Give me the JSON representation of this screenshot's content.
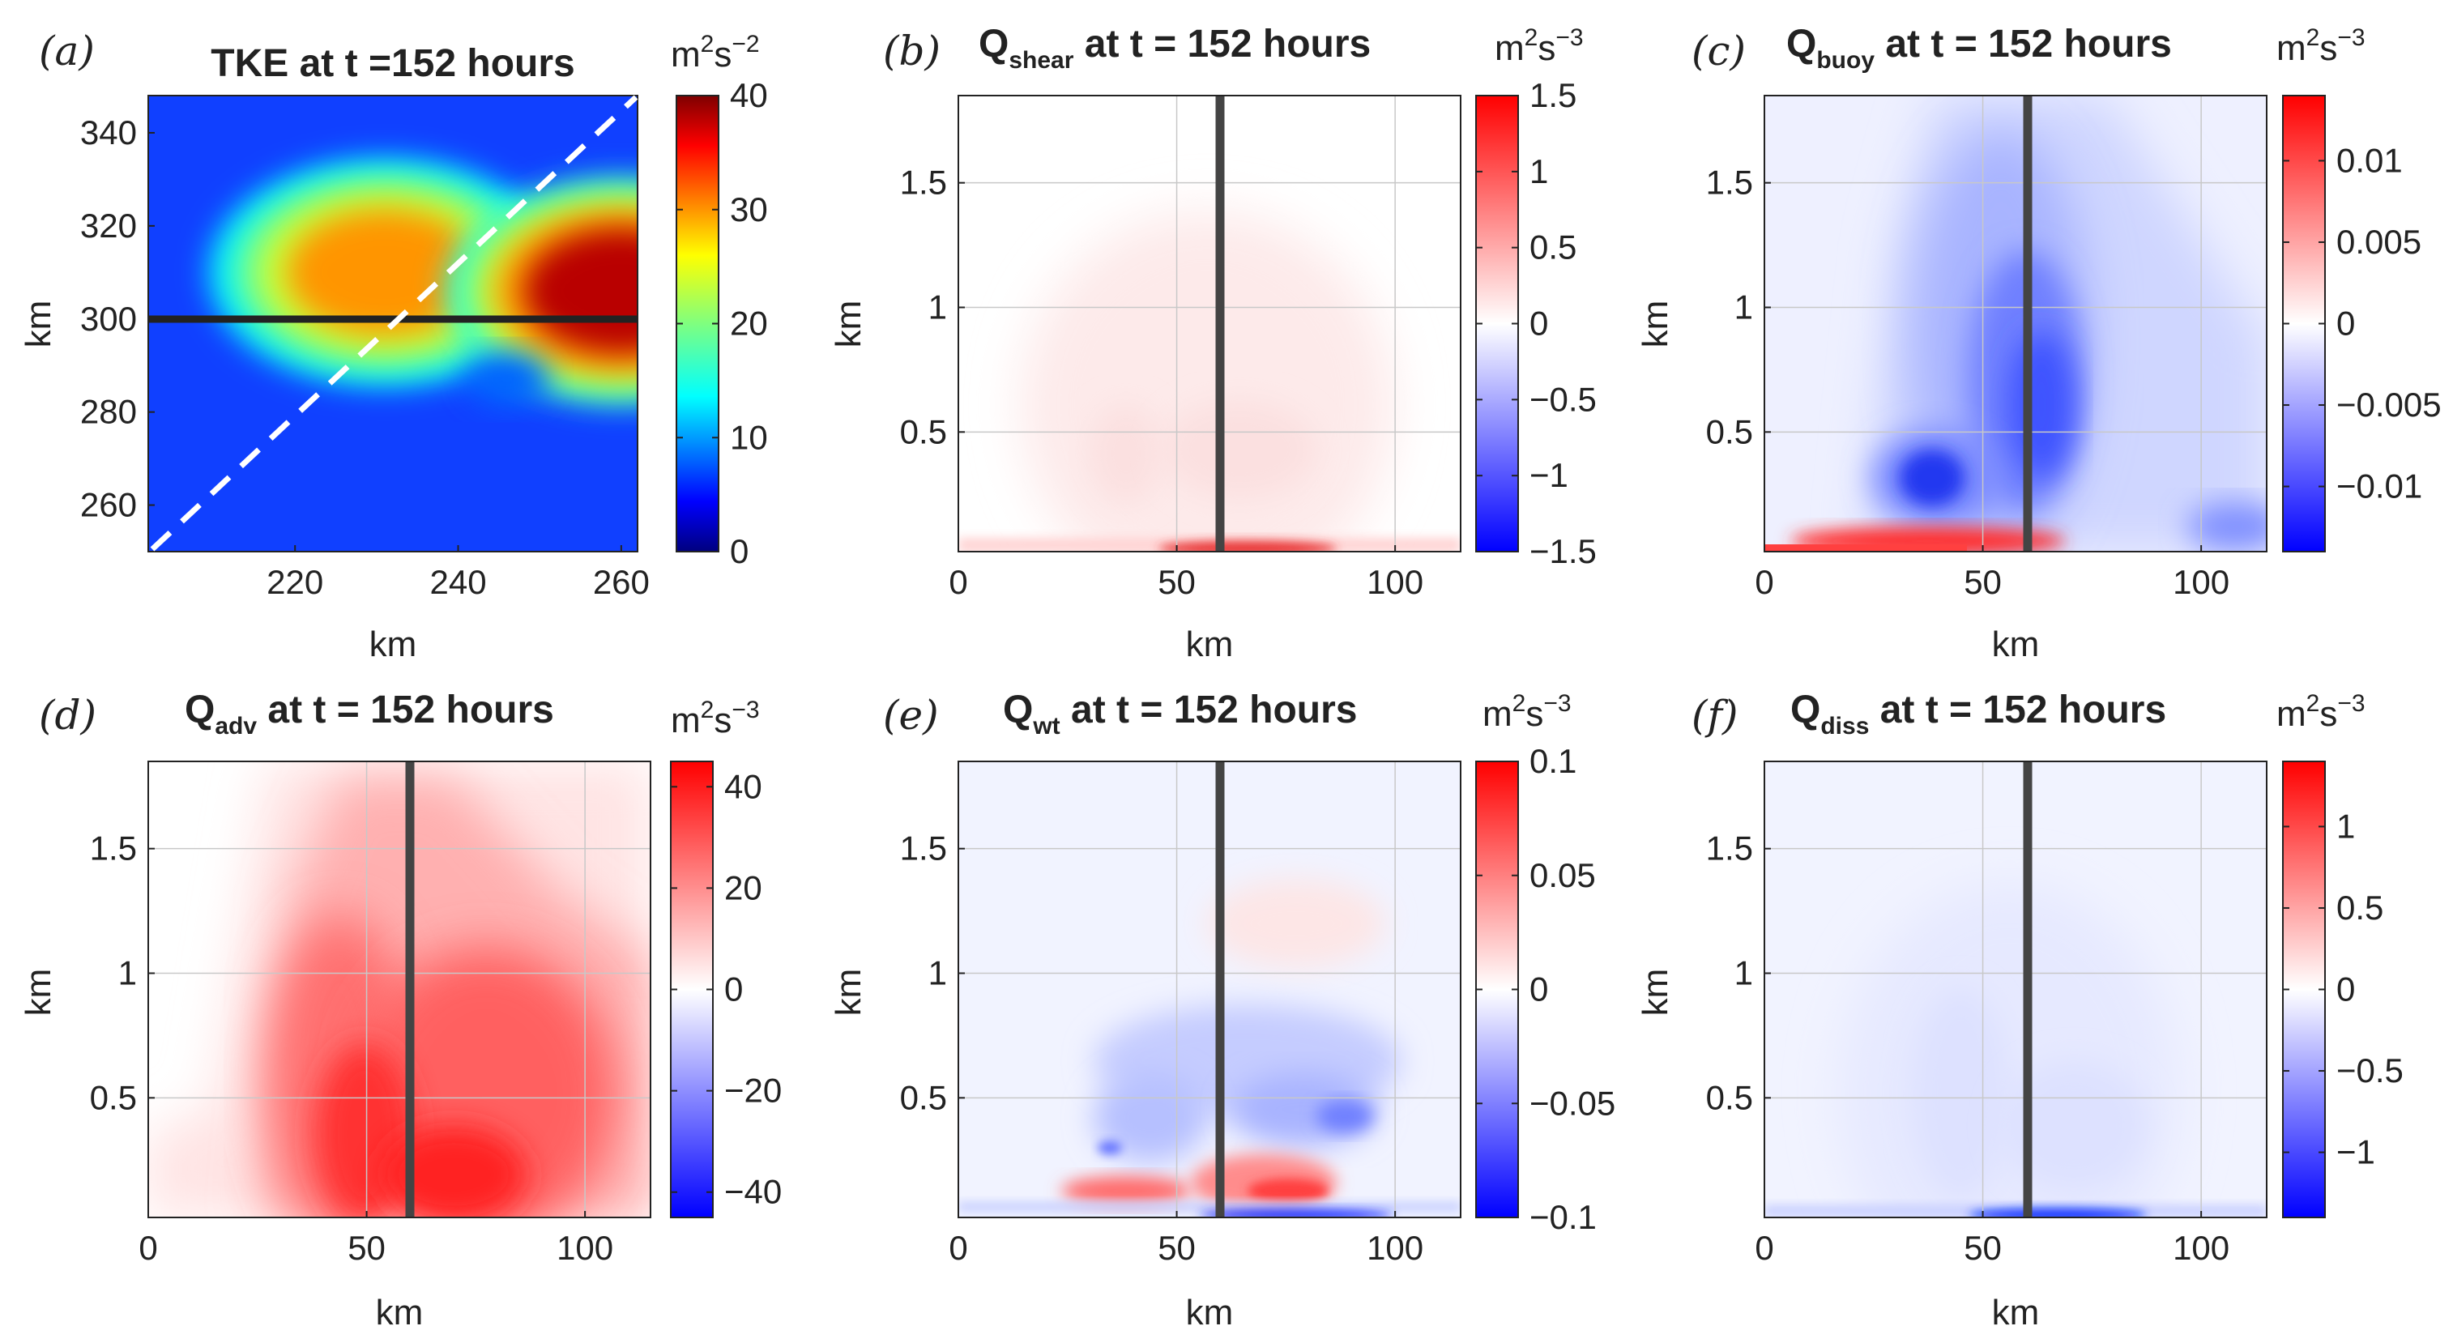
{
  "chart_data": [
    {
      "id": "a",
      "type": "heatmap",
      "panel_letter": "(a)",
      "title": "TKE at t =152 hours",
      "xlabel": "km",
      "ylabel": "km",
      "xlim": [
        202,
        262
      ],
      "ylim": [
        250,
        348
      ],
      "xticks": [
        "220",
        "240",
        "260"
      ],
      "yticks": [
        "260",
        "280",
        "300",
        "320",
        "340"
      ],
      "colorbar": {
        "unit": "m²s⁻²",
        "unit_main": "m",
        "unit_exp": "2",
        "unit_main2": "s",
        "unit_exp2": "−2",
        "min": 0,
        "max": 40,
        "ticks": [
          "0",
          "10",
          "20",
          "30",
          "40"
        ],
        "colormap": "jet"
      },
      "overlays": {
        "horizontal_line_y": 300,
        "dashed_diagonal": true
      },
      "blobs": [
        {
          "x": 231,
          "y": 310,
          "value": 30
        },
        {
          "x": 260,
          "y": 306,
          "value": 38
        },
        {
          "x": 246,
          "y": 287,
          "value": 8
        }
      ],
      "base_value": 4
    },
    {
      "id": "b",
      "type": "heatmap",
      "panel_letter": "(b)",
      "title_main": "Q",
      "title_sub": "shear",
      "title_rest": " at t = 152 hours",
      "xlabel": "km",
      "ylabel": "km",
      "xlim": [
        0,
        115
      ],
      "ylim": [
        0.02,
        1.85
      ],
      "xticks": [
        "0",
        "50",
        "100"
      ],
      "yticks": [
        "0.5",
        "1",
        "1.5"
      ],
      "colorbar": {
        "unit_main": "m",
        "unit_exp": "2",
        "unit_main2": "s",
        "unit_exp2": "−3",
        "min": -1.5,
        "max": 1.5,
        "ticks": [
          "1.5",
          "1",
          "0.5",
          "0",
          "−0.5",
          "−1",
          "−1.5"
        ],
        "colormap": "bwr"
      },
      "overlays": {
        "vertical_line_x": 60
      },
      "peak_value": 0.8
    },
    {
      "id": "c",
      "type": "heatmap",
      "panel_letter": "(c)",
      "title_main": "Q",
      "title_sub": "buoy",
      "title_rest": " at t = 152 hours",
      "xlabel": "km",
      "ylabel": "km",
      "xlim": [
        0,
        115
      ],
      "ylim": [
        0.02,
        1.85
      ],
      "xticks": [
        "0",
        "50",
        "100"
      ],
      "yticks": [
        "0.5",
        "1",
        "1.5"
      ],
      "colorbar": {
        "unit_main": "m",
        "unit_exp": "2",
        "unit_main2": "s",
        "unit_exp2": "−3",
        "min": -0.014,
        "max": 0.014,
        "ticks": [
          "0.01",
          "0.005",
          "0",
          "−0.005",
          "−0.01"
        ],
        "colormap": "bwr"
      },
      "overlays": {
        "vertical_line_x": 60
      }
    },
    {
      "id": "d",
      "type": "heatmap",
      "panel_letter": "(d)",
      "title_main": "Q",
      "title_sub": "adv",
      "title_rest": " at t = 152 hours",
      "xlabel": "km",
      "ylabel": "km",
      "xlim": [
        0,
        115
      ],
      "ylim": [
        0.02,
        1.85
      ],
      "xticks": [
        "0",
        "50",
        "100"
      ],
      "yticks": [
        "0.5",
        "1",
        "1.5"
      ],
      "colorbar": {
        "unit_main": "m",
        "unit_exp": "2",
        "unit_main2": "s",
        "unit_exp2": "−3",
        "min": -45,
        "max": 45,
        "ticks": [
          "40",
          "20",
          "0",
          "−20",
          "−40"
        ],
        "colormap": "bwr"
      },
      "overlays": {
        "vertical_line_x": 60
      }
    },
    {
      "id": "e",
      "type": "heatmap",
      "panel_letter": "(e)",
      "title_main": "Q",
      "title_sub": "wt",
      "title_rest": " at t = 152 hours",
      "xlabel": "km",
      "ylabel": "km",
      "xlim": [
        0,
        115
      ],
      "ylim": [
        0.02,
        1.85
      ],
      "xticks": [
        "0",
        "50",
        "100"
      ],
      "yticks": [
        "0.5",
        "1",
        "1.5"
      ],
      "colorbar": {
        "unit_main": "m",
        "unit_exp": "2",
        "unit_main2": "s",
        "unit_exp2": "−3",
        "min": -0.1,
        "max": 0.1,
        "ticks": [
          "0.1",
          "0.05",
          "0",
          "−0.05",
          "−0.1"
        ],
        "colormap": "bwr"
      },
      "overlays": {
        "vertical_line_x": 60
      }
    },
    {
      "id": "f",
      "type": "heatmap",
      "panel_letter": "(f)",
      "title_main": "Q",
      "title_sub": "diss",
      "title_rest": " at t = 152 hours",
      "xlabel": "km",
      "ylabel": "km",
      "xlim": [
        0,
        115
      ],
      "ylim": [
        0.02,
        1.85
      ],
      "xticks": [
        "0",
        "50",
        "100"
      ],
      "yticks": [
        "0.5",
        "1",
        "1.5"
      ],
      "colorbar": {
        "unit_main": "m",
        "unit_exp": "2",
        "unit_main2": "s",
        "unit_exp2": "−3",
        "min": -1.4,
        "max": 1.4,
        "ticks": [
          "1",
          "0.5",
          "0",
          "−0.5",
          "−1"
        ],
        "colormap": "bwr"
      },
      "overlays": {
        "vertical_line_x": 60
      }
    }
  ]
}
